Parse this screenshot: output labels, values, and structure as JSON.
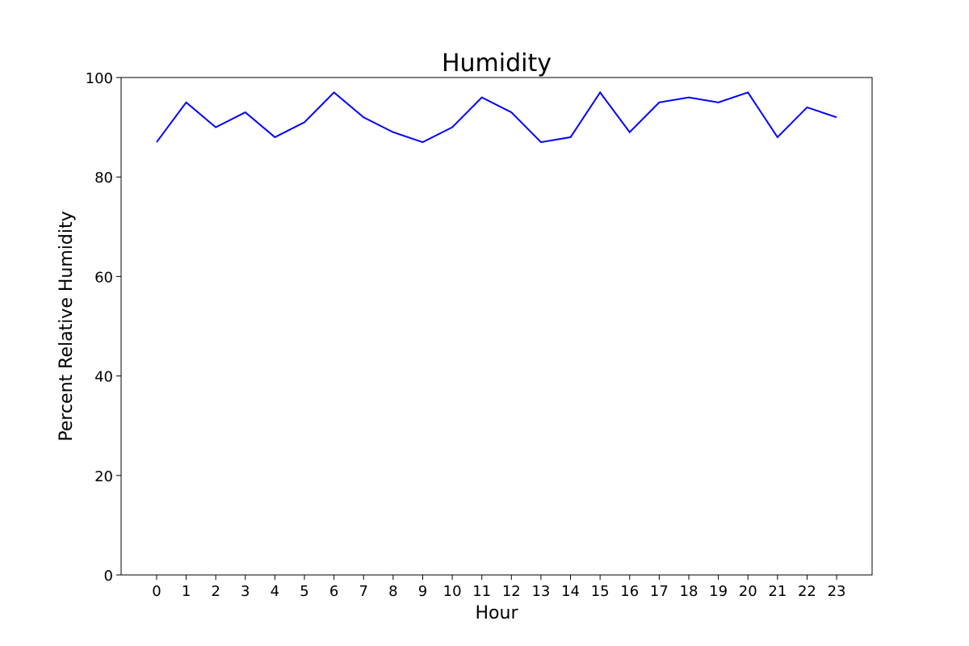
{
  "chart_data": {
    "type": "line",
    "title": "Humidity",
    "xlabel": "Hour",
    "ylabel": "Percent Relative Humidity",
    "x": [
      0,
      1,
      2,
      3,
      4,
      5,
      6,
      7,
      8,
      9,
      10,
      11,
      12,
      13,
      14,
      15,
      16,
      17,
      18,
      19,
      20,
      21,
      22,
      23
    ],
    "x_tick_labels": [
      "0",
      "1",
      "2",
      "3",
      "4",
      "5",
      "6",
      "7",
      "8",
      "9",
      "10",
      "11",
      "12",
      "13",
      "14",
      "15",
      "16",
      "17",
      "18",
      "19",
      "20",
      "21",
      "22",
      "23"
    ],
    "series": [
      {
        "values": [
          87,
          95,
          90,
          93,
          88,
          91,
          97,
          92,
          89,
          87,
          90,
          96,
          93,
          87,
          88,
          97,
          89,
          95,
          96,
          95,
          97,
          88,
          94,
          92
        ],
        "color": "#0000ff"
      }
    ],
    "ylim": [
      0,
      100
    ],
    "y_ticks": [
      0,
      20,
      40,
      60,
      80,
      100
    ],
    "y_tick_labels": [
      "0",
      "20",
      "40",
      "60",
      "80",
      "100"
    ],
    "xlim": [
      -1.2,
      24.2
    ],
    "grid": false
  }
}
